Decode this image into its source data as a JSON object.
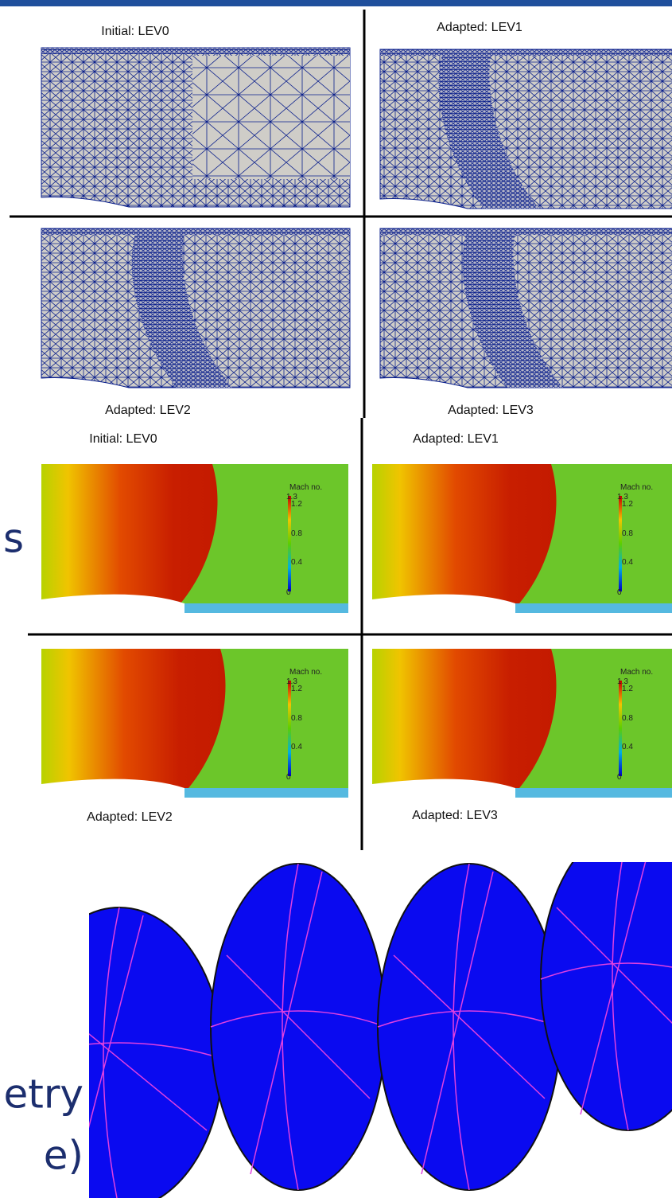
{
  "mesh_panels": [
    {
      "label": "Initial: LEV0"
    },
    {
      "label": "Adapted: LEV1"
    },
    {
      "label": "Adapted: LEV2"
    },
    {
      "label": "Adapted: LEV3"
    }
  ],
  "mach_panels": [
    {
      "label": "Initial: LEV0",
      "legend": {
        "title": "Mach no.",
        "ticks": [
          "1.3",
          "1.2",
          "0.8",
          "0.4",
          "0"
        ]
      }
    },
    {
      "label": "Adapted: LEV1",
      "legend": {
        "title": "Mach no.",
        "ticks": [
          "1.3",
          "1.2",
          "0.8",
          "0.4",
          "0"
        ]
      }
    },
    {
      "label": "Adapted: LEV2",
      "legend": {
        "title": "Mach no.",
        "ticks": [
          "1.3",
          "1.2",
          "0.8",
          "0.4",
          "0"
        ]
      }
    },
    {
      "label": "Adapted: LEV3",
      "legend": {
        "title": "Mach no.",
        "ticks": [
          "1.3",
          "1.2",
          "0.8",
          "0.4",
          "0"
        ]
      }
    }
  ],
  "side_text": [
    "s",
    "etry",
    "e)"
  ]
}
